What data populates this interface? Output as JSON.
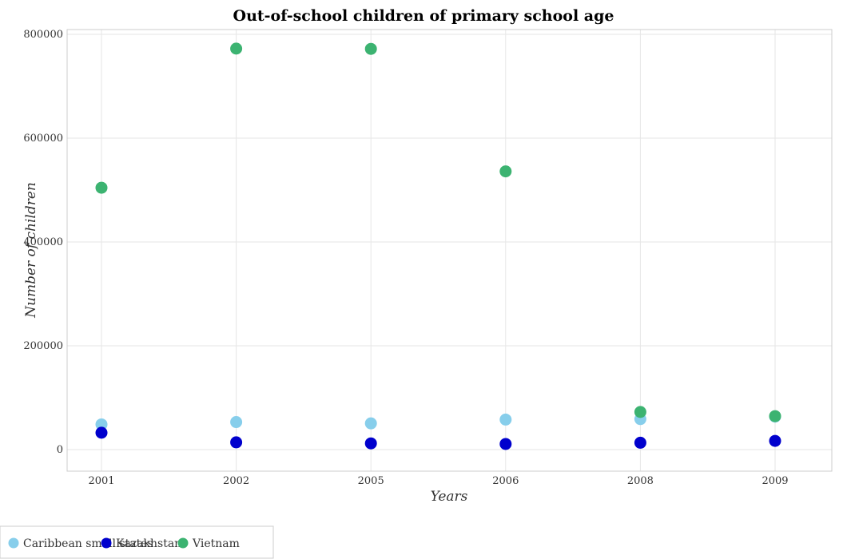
{
  "chart_data": {
    "type": "scatter",
    "title": "Out-of-school children of primary school age",
    "xlabel": "Years",
    "ylabel": "Number of children",
    "categories": [
      "2001",
      "2002",
      "2005",
      "2006",
      "2008",
      "2009"
    ],
    "ylim": [
      0,
      800000
    ],
    "yticks": [
      0,
      200000,
      400000,
      600000,
      800000
    ],
    "ytick_labels": [
      "0",
      "200000",
      "400000",
      "600000",
      "800000"
    ],
    "grid": true,
    "legend_position": "bottom-left",
    "series": [
      {
        "name": "Caribbean small states",
        "color": "#87ceeb",
        "values": [
          48500,
          53000,
          50500,
          57800,
          58800,
          63500
        ]
      },
      {
        "name": "Kazakhstan",
        "color": "#0000cd",
        "values": [
          32500,
          14000,
          12000,
          10800,
          13200,
          16800
        ]
      },
      {
        "name": "Vietnam",
        "color": "#3cb371",
        "values": [
          504500,
          772500,
          772000,
          536000,
          72500,
          64500
        ]
      }
    ]
  }
}
